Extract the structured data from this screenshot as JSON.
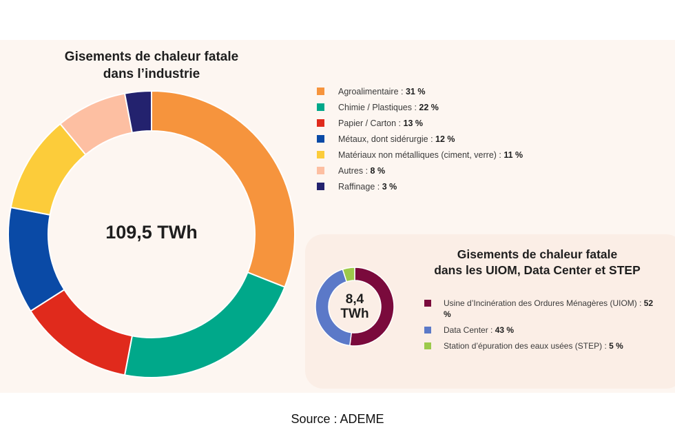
{
  "chart_data": [
    {
      "type": "pie",
      "title": "Gisements de chaleur fatale dans l’industrie",
      "title_lines": [
        "Gisements de chaleur fatale",
        "dans l’industrie"
      ],
      "center_label": "109,5 TWh",
      "categories": [
        "Agroalimentaire",
        "Chimie / Plastiques",
        "Papier / Carton",
        "Métaux, dont sidérurgie",
        "Matériaux non métalliques (ciment, verre)",
        "Autres",
        "Raffinage"
      ],
      "values": [
        31,
        22,
        13,
        12,
        11,
        8,
        3
      ],
      "value_labels": [
        "31 %",
        "22 %",
        "13 %",
        "12 %",
        "11 %",
        "8 %",
        "3 %"
      ],
      "colors": [
        "#f6943d",
        "#00a88a",
        "#e02a1c",
        "#0a4aa6",
        "#fccc3a",
        "#fdbfa2",
        "#23226e"
      ],
      "legend_position": "right"
    },
    {
      "type": "pie",
      "title": "Gisements de chaleur fatale dans les UIOM, Data Center et STEP",
      "title_lines": [
        "Gisements de chaleur fatale",
        "dans les UIOM, Data Center et STEP"
      ],
      "center_label_lines": [
        "8,4",
        "TWh"
      ],
      "categories": [
        "Usine d’Incinération des Ordures Ménagères (UIOM)",
        "Data Center",
        "Station d’épuration des eaux usées (STEP)"
      ],
      "values": [
        52,
        43,
        5
      ],
      "value_labels": [
        "52 %",
        "43 %",
        "5 %"
      ],
      "colors": [
        "#7a0a3c",
        "#5b79c8",
        "#9cc94a"
      ],
      "legend_position": "right"
    }
  ],
  "source": "Source : ADEME"
}
